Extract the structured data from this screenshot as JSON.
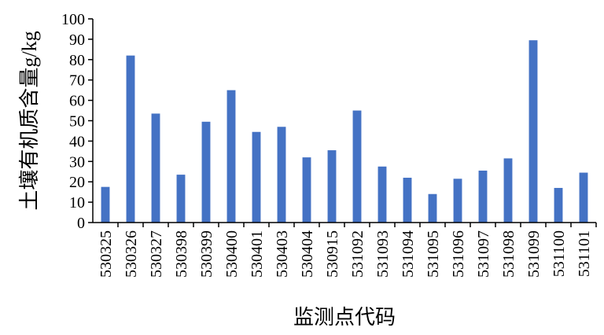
{
  "chart_data": {
    "type": "bar",
    "categories": [
      "530325",
      "530326",
      "530327",
      "530398",
      "530399",
      "530400",
      "530401",
      "530403",
      "530404",
      "530915",
      "531092",
      "531093",
      "531094",
      "531095",
      "531096",
      "531097",
      "531098",
      "531099",
      "531100",
      "531101"
    ],
    "values": [
      17.5,
      82,
      53.5,
      23.5,
      49.5,
      65,
      44.5,
      47,
      32,
      35.5,
      55,
      27.5,
      22,
      14,
      21.5,
      25.5,
      31.5,
      89.5,
      17,
      24.5
    ],
    "xlabel": "监测点代码",
    "ylabel": "土壤有机质含量g/kg",
    "ylim": [
      0,
      100
    ],
    "yticks": [
      0,
      10,
      20,
      30,
      40,
      50,
      60,
      70,
      80,
      90,
      100
    ],
    "bar_color": "#4472C4",
    "grid": false,
    "legend": "none"
  }
}
